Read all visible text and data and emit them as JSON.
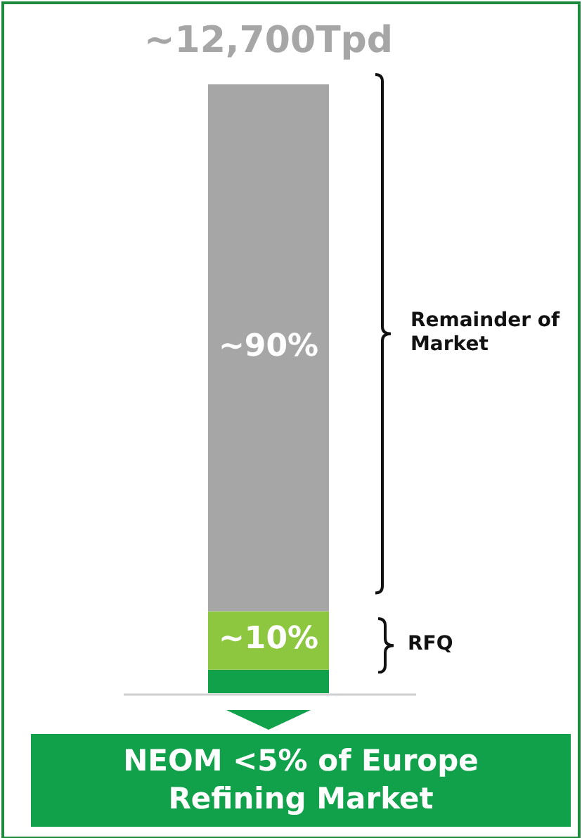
{
  "chart_data": {
    "type": "bar",
    "title": "~12,700Tpd",
    "stacked": true,
    "categories": [
      null
    ],
    "series": [
      {
        "color": "#12a14b",
        "values": [
          4
        ]
      },
      {
        "color": "#8dc63f",
        "values": [
          10
        ],
        "value_labels": [
          "~10%"
        ]
      },
      {
        "color": "#a6a6a6",
        "values": [
          90
        ],
        "value_labels": [
          "~90%"
        ]
      }
    ],
    "annotations": [
      "Remainder of Market",
      "RFQ",
      "NEOM <5% of Europe Refining Market"
    ]
  }
}
